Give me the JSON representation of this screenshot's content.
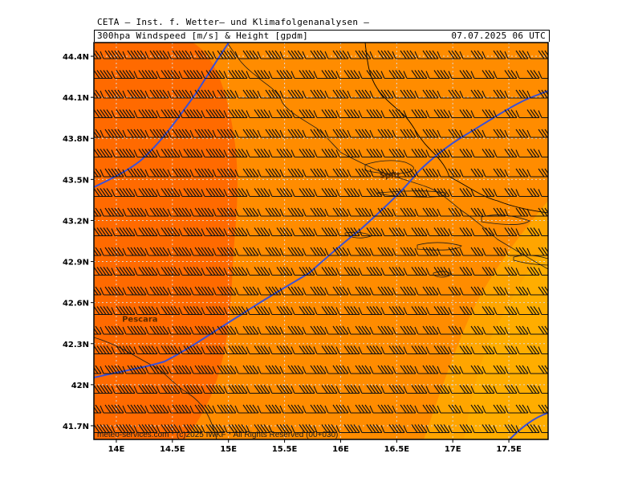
{
  "header": {
    "institute": "CETA — Inst. f. Wetter— und Klimafolgenanalysen —",
    "subtitle": "300hpa Windspeed [m/s] & Height [gpdm]",
    "datetime": "07.07.2025 06 UTC"
  },
  "map": {
    "lat_labels": [
      "44.4N",
      "44.1N",
      "43.8N",
      "43.5N",
      "43.2N",
      "42.9N",
      "42.6N",
      "42.3N",
      "42N",
      "41.7N"
    ],
    "lat_values": [
      44.4,
      44.1,
      43.8,
      43.5,
      43.2,
      42.9,
      42.6,
      42.3,
      42.0,
      41.7
    ],
    "lon_labels": [
      "14E",
      "14.5E",
      "15E",
      "15.5E",
      "16E",
      "16.5E",
      "17E",
      "17.5E"
    ],
    "lon_values": [
      14.0,
      14.5,
      15.0,
      15.5,
      16.0,
      16.5,
      17.0,
      17.5
    ],
    "lon_range": [
      13.8,
      17.85
    ],
    "lat_range": [
      41.6,
      44.5
    ],
    "cities": [
      {
        "name": "Split",
        "lon": 16.44,
        "lat": 43.51
      },
      {
        "name": "Pescara",
        "lon": 14.21,
        "lat": 42.46
      }
    ],
    "wind_barb_direction": "westerly (flag pointing to the north side)",
    "colors": {
      "speed_band_high": "#ff6a00",
      "speed_band_mid": "#ff8c00",
      "speed_band_low": "#ffa500",
      "speed_band_lowest": "#ffb400",
      "contour": "#3a50d8",
      "grid": "#d8d8d8"
    }
  },
  "footer": {
    "credit": "meteo-services.com * (c)2025 IWKF * All Rights Reserved (00+030)"
  }
}
